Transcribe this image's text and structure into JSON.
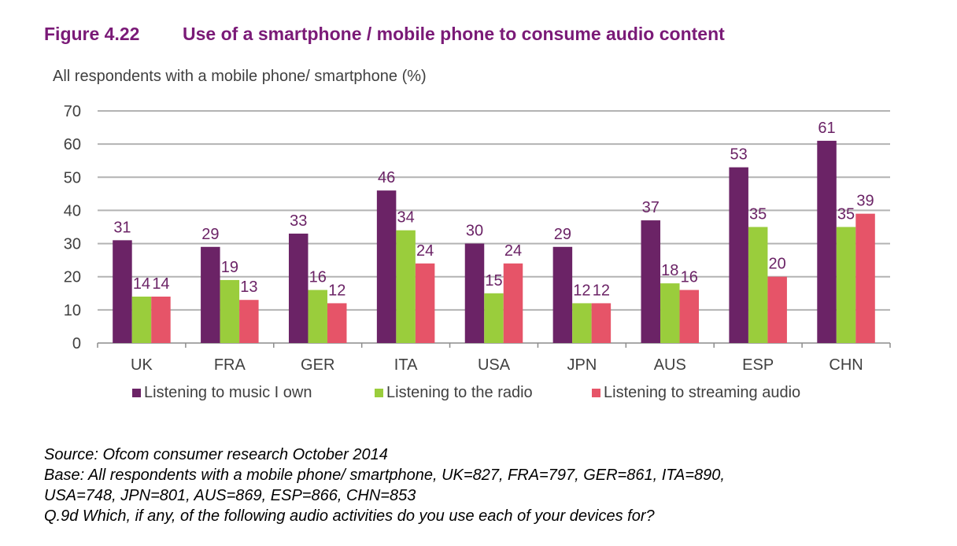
{
  "figure": {
    "number": "Figure 4.22",
    "title": "Use of a smartphone / mobile phone to consume audio content"
  },
  "chart_data": {
    "type": "bar",
    "title": "Use of a smartphone / mobile phone to consume audio content",
    "ylabel": "All respondents with a mobile phone/ smartphone (%)",
    "xlabel": "",
    "ylim": [
      0,
      70
    ],
    "yticks": [
      0,
      10,
      20,
      30,
      40,
      50,
      60,
      70
    ],
    "grid": true,
    "legend_position": "bottom",
    "categories": [
      "UK",
      "FRA",
      "GER",
      "ITA",
      "USA",
      "JPN",
      "AUS",
      "ESP",
      "CHN"
    ],
    "series": [
      {
        "name": "Listening to music I own",
        "color": "#6b2366",
        "values": [
          31,
          29,
          33,
          46,
          30,
          29,
          37,
          53,
          61
        ]
      },
      {
        "name": "Listening to the radio",
        "color": "#9acd3c",
        "values": [
          14,
          19,
          16,
          34,
          15,
          12,
          18,
          35,
          35
        ]
      },
      {
        "name": "Listening to streaming audio",
        "color": "#e65468",
        "values": [
          14,
          13,
          12,
          24,
          24,
          12,
          16,
          20,
          39
        ]
      }
    ]
  },
  "notes": {
    "source": "Source: Ofcom consumer research October 2014",
    "base_line1": "Base: All respondents with a mobile phone/ smartphone, UK=827, FRA=797, GER=861, ITA=890,",
    "base_line2": "USA=748, JPN=801, AUS=869, ESP=866, CHN=853",
    "question": "Q.9d Which, if any, of the following audio activities do you use each of your devices for?"
  }
}
